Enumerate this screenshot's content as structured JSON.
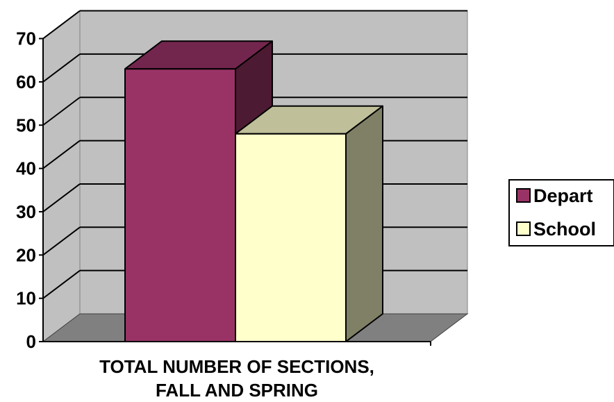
{
  "chart_data": {
    "type": "bar",
    "categories": [
      "TOTAL NUMBER OF SECTIONS, FALL AND SPRING"
    ],
    "series": [
      {
        "name": "Depart",
        "values": [
          63
        ],
        "color": "#993366"
      },
      {
        "name": "School",
        "values": [
          48
        ],
        "color": "#FFFFCC"
      }
    ],
    "xlabel_lines": [
      "TOTAL NUMBER OF SECTIONS,",
      "FALL AND SPRING"
    ],
    "ylim": [
      0,
      70
    ],
    "yticks": [
      0,
      10,
      20,
      30,
      40,
      50,
      60,
      70
    ],
    "grid": true,
    "legend": "right",
    "style": "3d-column",
    "colors": {
      "wall": "#C0C0C0",
      "floor": "#808080"
    }
  }
}
